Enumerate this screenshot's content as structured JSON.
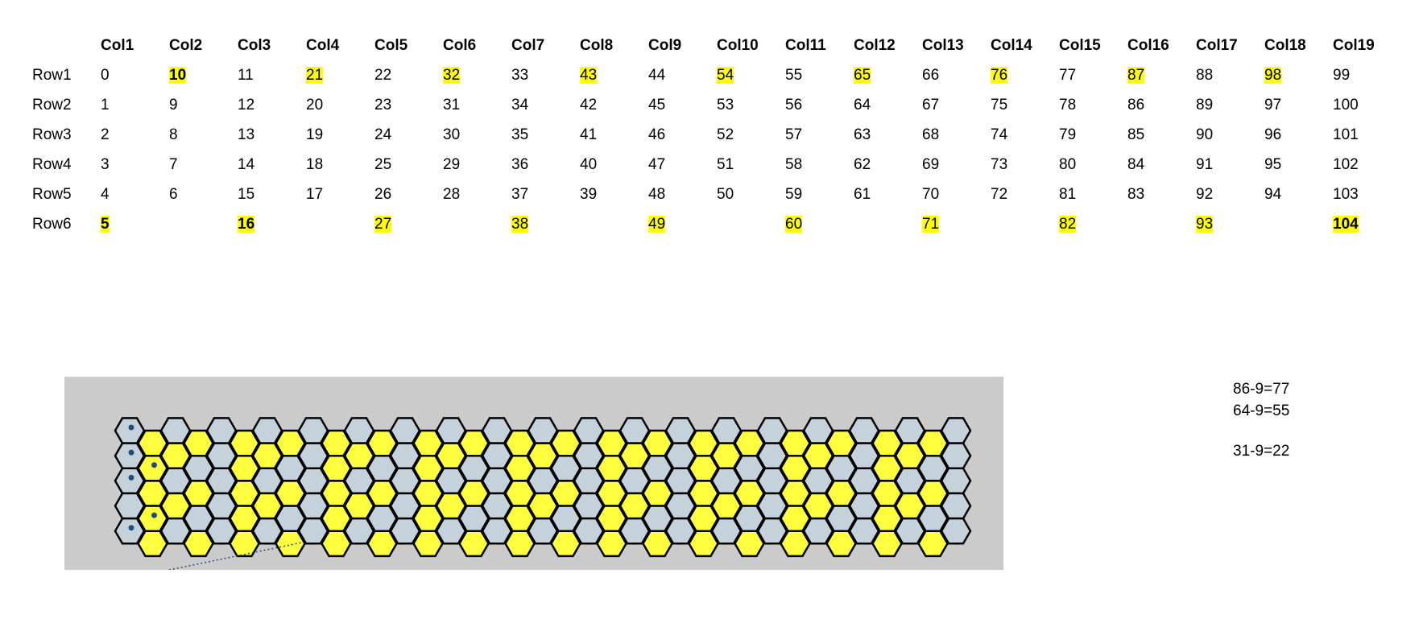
{
  "table": {
    "columns": [
      "Col1",
      "Col2",
      "Col3",
      "Col4",
      "Col5",
      "Col6",
      "Col7",
      "Col8",
      "Col9",
      "Col10",
      "Col11",
      "Col12",
      "Col13",
      "Col14",
      "Col15",
      "Col16",
      "Col17",
      "Col18",
      "Col19"
    ],
    "rows": [
      {
        "label": "Row1",
        "cells": [
          "0",
          "10",
          "11",
          "21",
          "22",
          "32",
          "33",
          "43",
          "44",
          "54",
          "55",
          "65",
          "66",
          "76",
          "77",
          "87",
          "88",
          "98",
          "99"
        ]
      },
      {
        "label": "Row2",
        "cells": [
          "1",
          "9",
          "12",
          "20",
          "23",
          "31",
          "34",
          "42",
          "45",
          "53",
          "56",
          "64",
          "67",
          "75",
          "78",
          "86",
          "89",
          "97",
          "100"
        ]
      },
      {
        "label": "Row3",
        "cells": [
          "2",
          "8",
          "13",
          "19",
          "24",
          "30",
          "35",
          "41",
          "46",
          "52",
          "57",
          "63",
          "68",
          "74",
          "79",
          "85",
          "90",
          "96",
          "101"
        ]
      },
      {
        "label": "Row4",
        "cells": [
          "3",
          "7",
          "14",
          "18",
          "25",
          "29",
          "36",
          "40",
          "47",
          "51",
          "58",
          "62",
          "69",
          "73",
          "80",
          "84",
          "91",
          "95",
          "102"
        ]
      },
      {
        "label": "Row5",
        "cells": [
          "4",
          "6",
          "15",
          "17",
          "26",
          "28",
          "37",
          "39",
          "48",
          "50",
          "59",
          "61",
          "70",
          "72",
          "81",
          "83",
          "92",
          "94",
          "103"
        ]
      },
      {
        "label": "Row6",
        "cells": [
          "5",
          "",
          "16",
          "",
          "27",
          "",
          "38",
          "",
          "49",
          "",
          "60",
          "",
          "71",
          "",
          "82",
          "",
          "93",
          "",
          "104"
        ]
      }
    ],
    "highlighted": [
      [
        0,
        1
      ],
      [
        0,
        3
      ],
      [
        0,
        5
      ],
      [
        0,
        7
      ],
      [
        0,
        9
      ],
      [
        0,
        11
      ],
      [
        0,
        13
      ],
      [
        0,
        15
      ],
      [
        0,
        17
      ],
      [
        5,
        0
      ],
      [
        5,
        2
      ],
      [
        5,
        4
      ],
      [
        5,
        6
      ],
      [
        5,
        8
      ],
      [
        5,
        10
      ],
      [
        5,
        12
      ],
      [
        5,
        14
      ],
      [
        5,
        16
      ],
      [
        5,
        18
      ]
    ],
    "bold": [
      [
        0,
        1
      ],
      [
        5,
        0
      ],
      [
        5,
        2
      ],
      [
        5,
        18
      ]
    ]
  },
  "hexgrid": {
    "rows": 5,
    "cols": 19,
    "yellow_color": "#ffff40",
    "gray_color": "#c5d2dc",
    "dot_color": "#1f4e79",
    "dots_on": [
      [
        0,
        0
      ],
      [
        1,
        0
      ],
      [
        2,
        0
      ],
      [
        4,
        0
      ],
      [
        1,
        1
      ],
      [
        3,
        1
      ]
    ]
  },
  "notes": [
    "86-9=77",
    "64-9=55",
    "31-9=22"
  ]
}
